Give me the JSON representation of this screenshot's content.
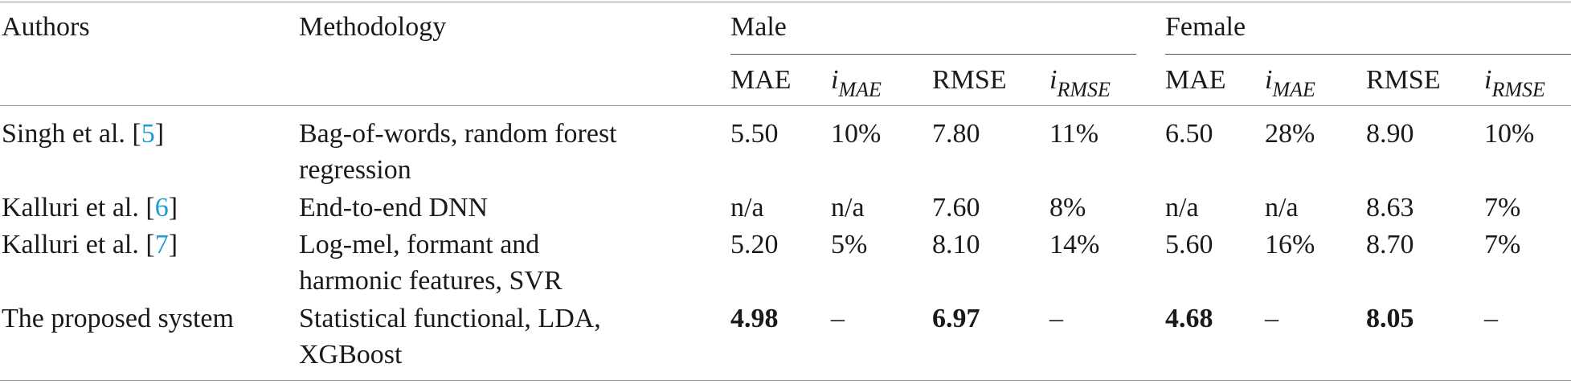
{
  "header": {
    "authors": "Authors",
    "methodology": "Methodology",
    "male": "Male",
    "female": "Female",
    "sub": {
      "mae": "MAE",
      "i": "i",
      "mae_sub": "MAE",
      "rmse": "RMSE",
      "rmse_sub": "RMSE"
    }
  },
  "rows": [
    {
      "author_prefix": "Singh et al. [",
      "cite": "5",
      "author_suffix": "]",
      "method_line1": "Bag-of-words, random forest",
      "method_line2": "regression",
      "values": [
        "5.50",
        "10%",
        "7.80",
        "11%",
        "6.50",
        "28%",
        "8.90",
        "10%"
      ]
    },
    {
      "author_prefix": "Kalluri et al. [",
      "cite": "6",
      "author_suffix": "]",
      "method_line1": "End-to-end DNN",
      "method_line2": "",
      "values": [
        "n/a",
        "n/a",
        "7.60",
        "8%",
        "n/a",
        "n/a",
        "8.63",
        "7%"
      ]
    },
    {
      "author_prefix": "Kalluri et al. [",
      "cite": "7",
      "author_suffix": "]",
      "method_line1": "Log-mel, formant and",
      "method_line2": "harmonic features, SVR",
      "values": [
        "5.20",
        "5%",
        "8.10",
        "14%",
        "5.60",
        "16%",
        "8.70",
        "7%"
      ]
    },
    {
      "author_prefix": "The proposed system",
      "cite": "",
      "author_suffix": "",
      "method_line1": "Statistical functional, LDA,",
      "method_line2": "XGBoost",
      "values": [
        "4.98",
        "–",
        "6.97",
        "–",
        "4.68",
        "–",
        "8.05",
        "–"
      ]
    }
  ]
}
